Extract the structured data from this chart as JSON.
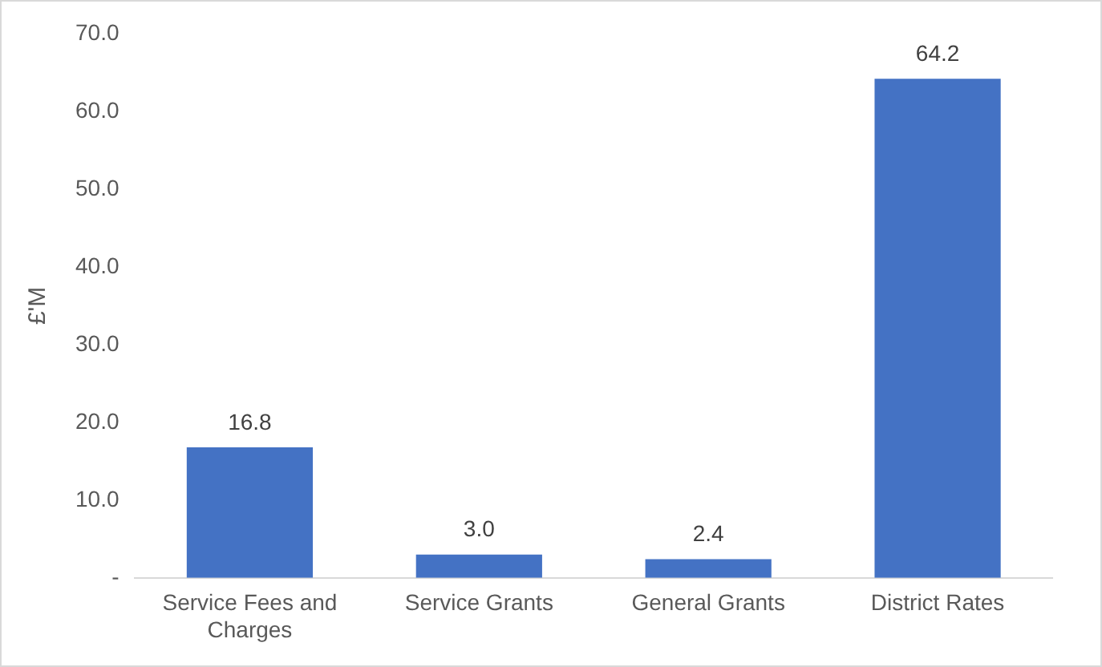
{
  "chart_data": {
    "type": "bar",
    "ylabel": "£'M",
    "categories": [
      "Service Fees and Charges",
      "Service Grants",
      "General Grants",
      "District Rates"
    ],
    "values": [
      16.8,
      3.0,
      2.4,
      64.2
    ],
    "value_labels": [
      "16.8",
      "3.0",
      "2.4",
      "64.2"
    ],
    "color": "#4472c4",
    "ylim": [
      0,
      70
    ],
    "yticks": [
      {
        "value": 0,
        "label": "-"
      },
      {
        "value": 10,
        "label": "10.0"
      },
      {
        "value": 20,
        "label": "20.0"
      },
      {
        "value": 30,
        "label": "30.0"
      },
      {
        "value": 40,
        "label": "40.0"
      },
      {
        "value": 50,
        "label": "50.0"
      },
      {
        "value": 60,
        "label": "60.0"
      },
      {
        "value": 70,
        "label": "70.0"
      }
    ],
    "grid": false,
    "legend": false
  }
}
